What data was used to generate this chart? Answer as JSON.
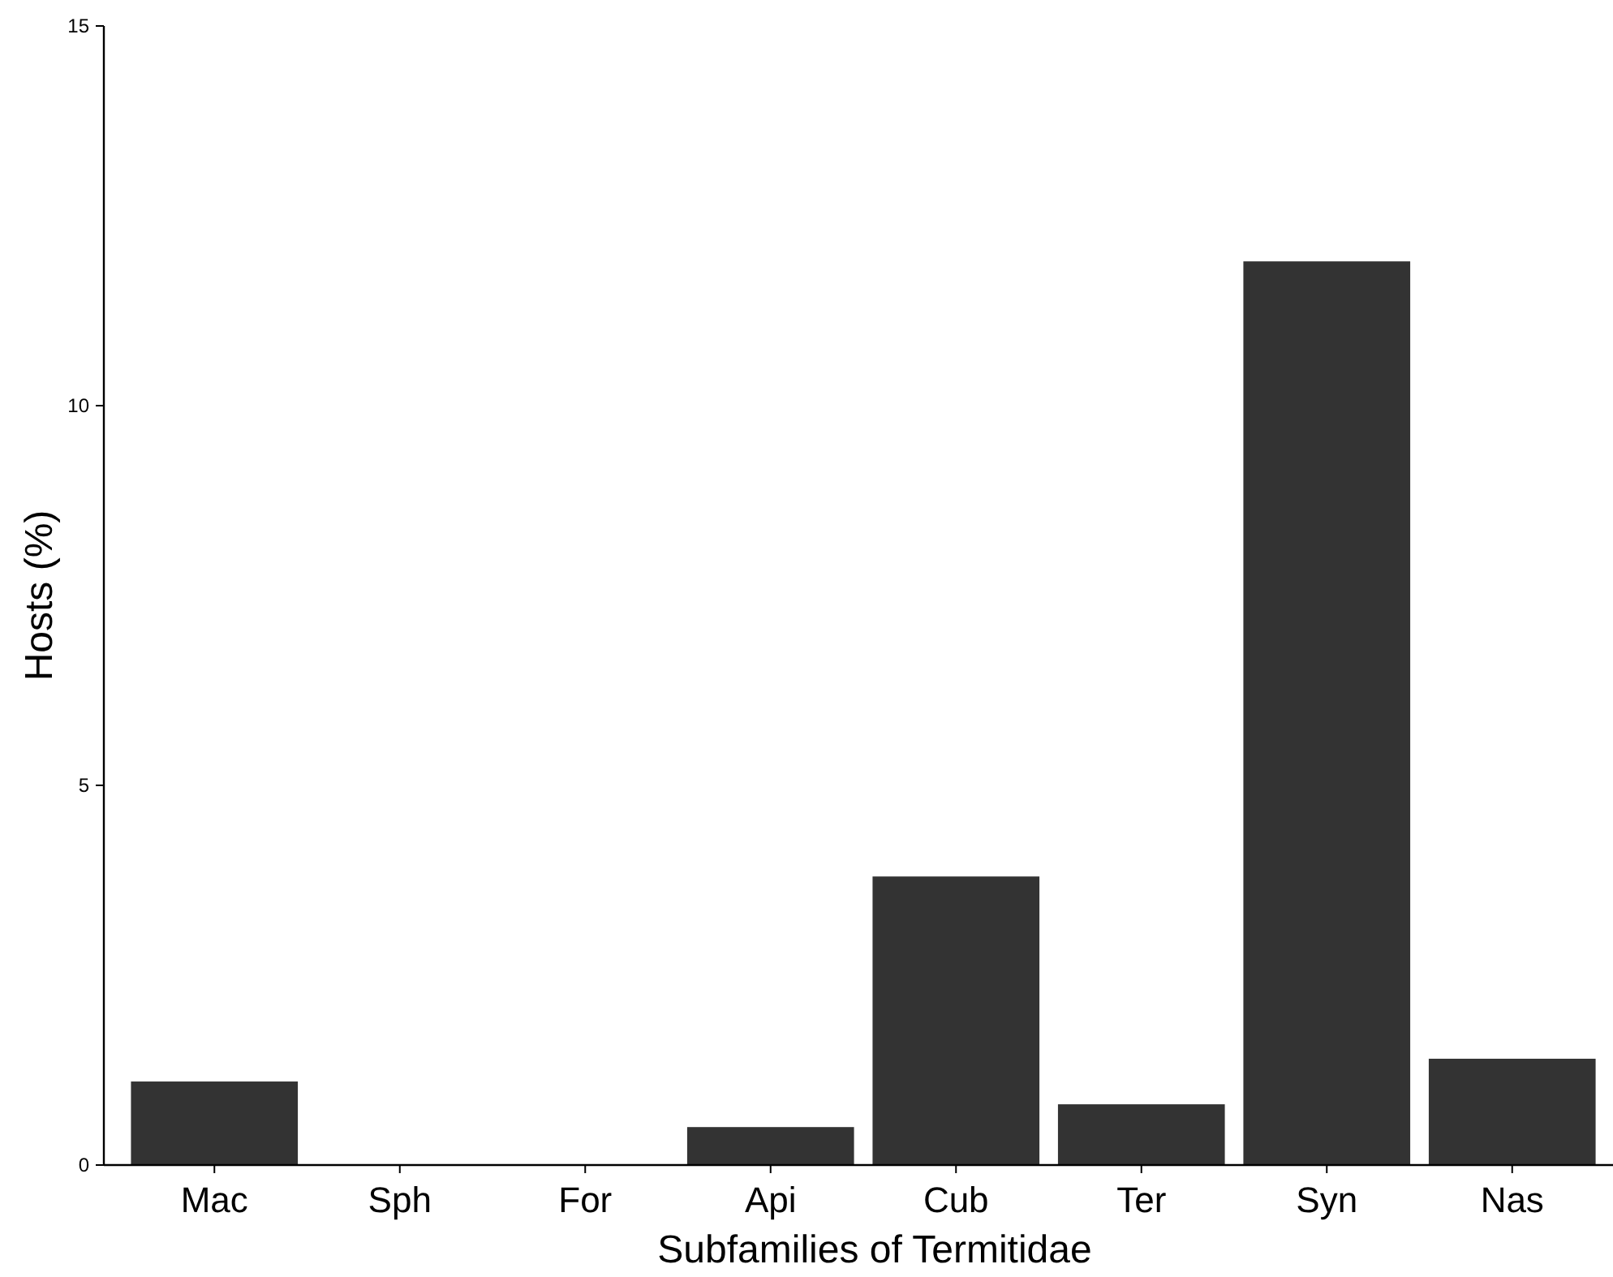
{
  "chart_data": {
    "type": "bar",
    "xlabel": "Subfamilies of Termitidae",
    "ylabel": "Hosts (%)",
    "categories": [
      "Mac",
      "Sph",
      "For",
      "Api",
      "Cub",
      "Ter",
      "Syn",
      "Nas"
    ],
    "values": [
      1.1,
      0,
      0,
      0.5,
      3.8,
      0.8,
      11.9,
      1.4
    ],
    "color": "#333333",
    "ylim": [
      0,
      15
    ],
    "yticks": [
      0,
      5,
      10,
      15
    ],
    "grid": false
  }
}
